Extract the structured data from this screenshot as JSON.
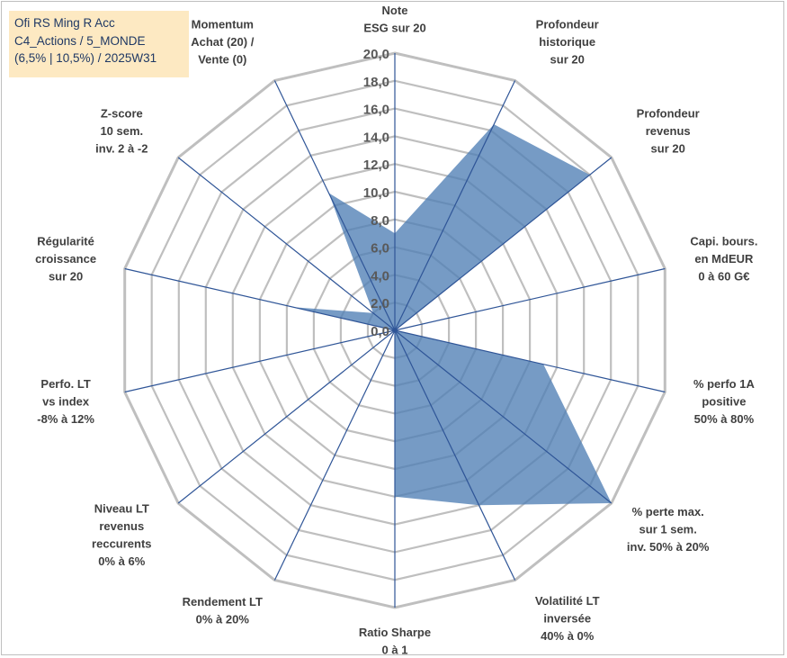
{
  "title_box": {
    "line1": "Ofi RS Ming R Acc",
    "line2": "C4_Actions / 5_MONDE",
    "line3": "(6,5% | 10,5%) / 2025W31"
  },
  "chart_data": {
    "type": "radar",
    "rmin": 0,
    "rmax": 20,
    "tick_step": 2,
    "ticks": [
      "0,0",
      "2,0",
      "4,0",
      "6,0",
      "8,0",
      "10,0",
      "12,0",
      "14,0",
      "16,0",
      "18,0",
      "20,0"
    ],
    "grid": true,
    "fill_color": "#4f7fb5",
    "line_color": "#2f5597",
    "grid_color": "#bfbfbf",
    "axes": [
      {
        "label": [
          "Note",
          "ESG sur 20"
        ],
        "value": 7.0
      },
      {
        "label": [
          "Profondeur",
          "historique",
          "sur 20"
        ],
        "value": 16.5
      },
      {
        "label": [
          "Profondeur",
          "revenus",
          "sur 20"
        ],
        "value": 18.0
      },
      {
        "label": [
          "Capi. bours.",
          "en MdEUR",
          "0 à 60 G€"
        ],
        "value": 0.0
      },
      {
        "label": [
          "% perfo 1A",
          "positive",
          "50% à 80%"
        ],
        "value": 11.0
      },
      {
        "label": [
          "% perte max.",
          "sur 1 sem.",
          "inv. 50% à 20%"
        ],
        "value": 20.0
      },
      {
        "label": [
          "Volatilité LT",
          "inversée",
          "40% à 0%"
        ],
        "value": 14.0
      },
      {
        "label": [
          "Ratio Sharpe",
          "0 à 1"
        ],
        "value": 12.0
      },
      {
        "label": [
          "Rendement LT",
          "0% à 20%"
        ],
        "value": 0.0
      },
      {
        "label": [
          "Niveau LT",
          "revenus",
          "reccurents",
          "0% à 6%"
        ],
        "value": 0.0
      },
      {
        "label": [
          "Perfo. LT",
          "vs index",
          "-8% à 12%"
        ],
        "value": 0.0
      },
      {
        "label": [
          "Régularité",
          "croissance",
          "sur 20"
        ],
        "value": 7.5
      },
      {
        "label": [
          "Z-score",
          "10 sem.",
          "inv. 2 à -2"
        ],
        "value": 2.0
      },
      {
        "label": [
          "Momentum",
          "Achat (20) /",
          "Vente (0)"
        ],
        "value": 11.0
      }
    ]
  }
}
